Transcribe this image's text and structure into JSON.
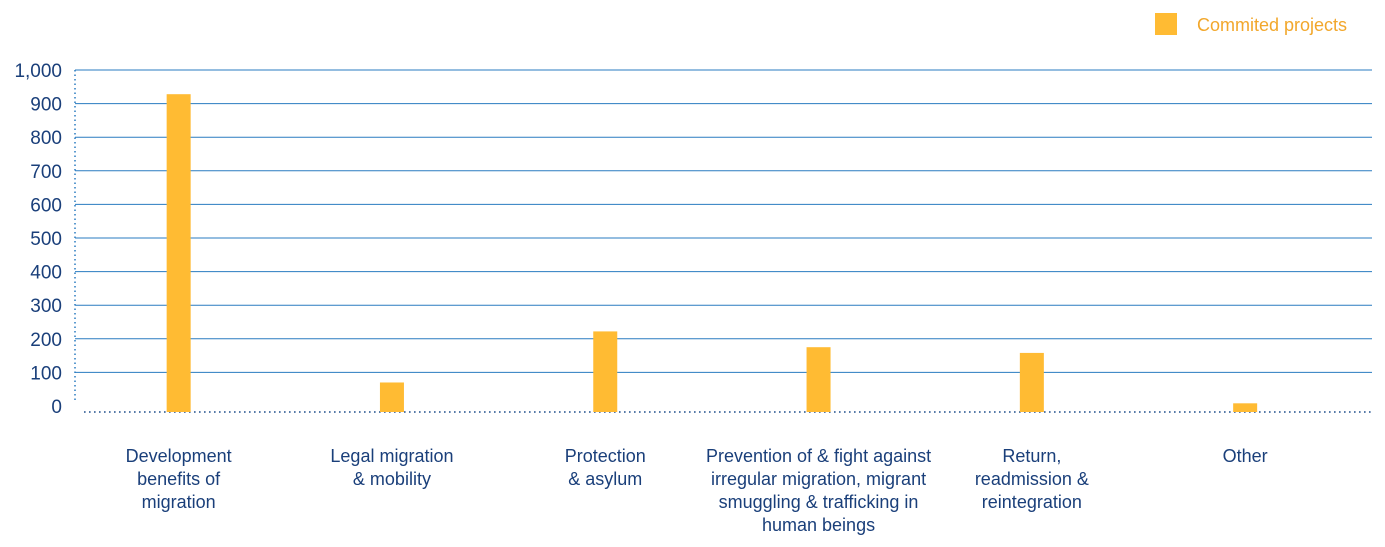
{
  "chart_data": {
    "type": "bar",
    "categories": [
      [
        "Development",
        "benefits of",
        "migration"
      ],
      [
        "Legal migration",
        "& mobility"
      ],
      [
        "Protection",
        "& asylum"
      ],
      [
        "Prevention of & fight against",
        "irregular migration, migrant",
        "smuggling & trafficking in",
        "human beings"
      ],
      [
        "Return,",
        "readmission &",
        "reintegration"
      ],
      [
        "Other"
      ]
    ],
    "series": [
      {
        "name": "Commited projects",
        "values": [
          928,
          70,
          222,
          175,
          158,
          8
        ]
      }
    ],
    "yticks": [
      "0",
      "100",
      "200",
      "300",
      "400",
      "500",
      "600",
      "700",
      "800",
      "900",
      "1,000"
    ],
    "ylim": [
      0,
      1000
    ],
    "grid": true,
    "legend": "top-right",
    "colors": {
      "bar": "#FFBB33",
      "axis": "#1F4E8C",
      "grid": "#2A7BC0",
      "text": "#1A3F7A",
      "legend_text": "#F2A72B"
    }
  }
}
